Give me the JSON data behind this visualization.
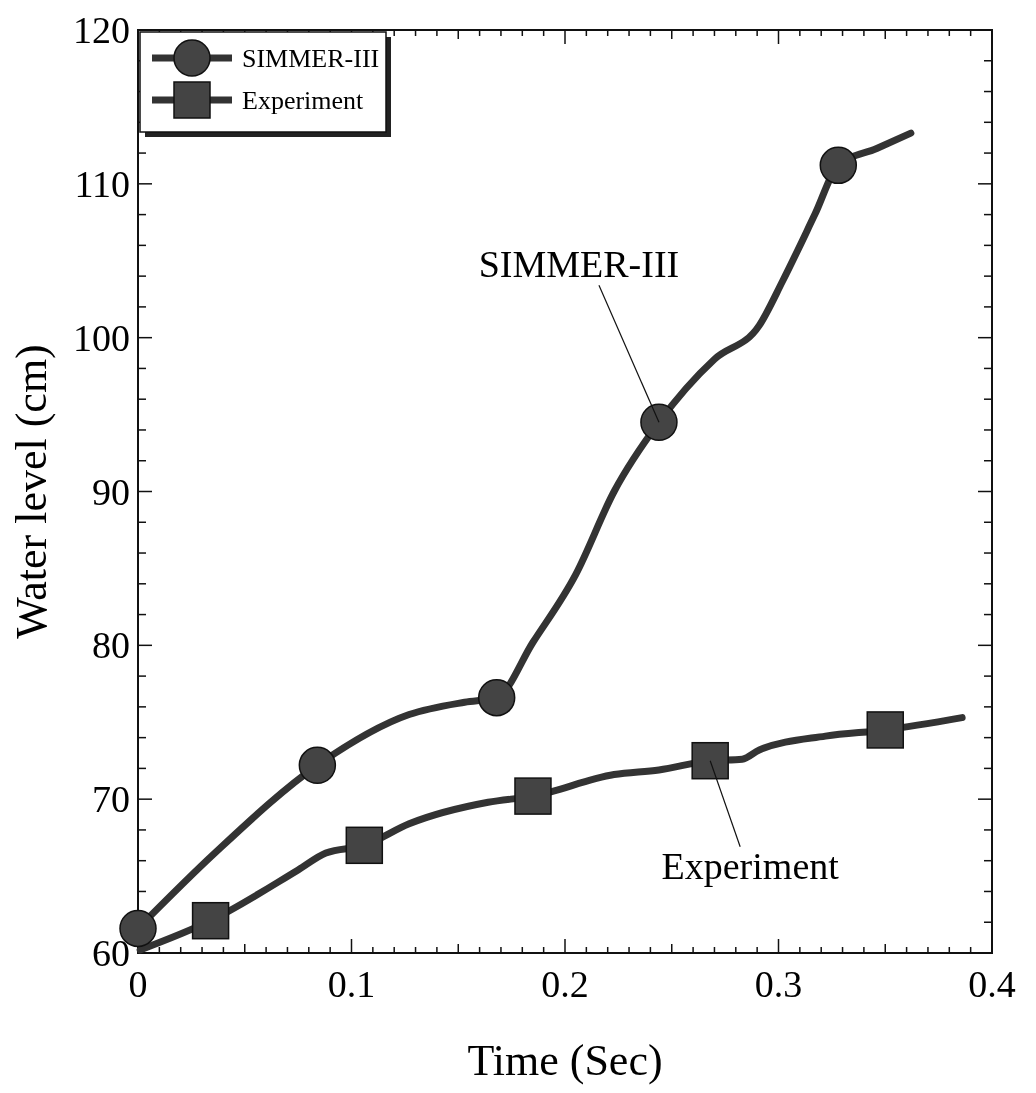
{
  "chart_data": {
    "type": "line",
    "xlabel": "Time (Sec)",
    "ylabel": "Water level (cm)",
    "xlim": [
      0,
      0.4
    ],
    "ylim": [
      60,
      120
    ],
    "xticks": [
      0,
      {
        "value": 0.01,
        "label": null
      },
      {
        "value": 0.02,
        "label": null
      },
      {
        "value": 0.03,
        "label": null
      },
      {
        "value": 0.04,
        "label": null
      },
      {
        "value": 0.05,
        "label": null
      },
      {
        "value": 0.06,
        "label": null
      },
      {
        "value": 0.07,
        "label": null
      },
      {
        "value": 0.08,
        "label": null
      },
      {
        "value": 0.09,
        "label": null
      },
      0.1,
      {
        "value": 0.11,
        "label": null
      },
      {
        "value": 0.12,
        "label": null
      },
      {
        "value": 0.13,
        "label": null
      },
      {
        "value": 0.14,
        "label": null
      },
      {
        "value": 0.15,
        "label": null
      },
      {
        "value": 0.16,
        "label": null
      },
      {
        "value": 0.17,
        "label": null
      },
      {
        "value": 0.18,
        "label": null
      },
      {
        "value": 0.19,
        "label": null
      },
      0.2,
      {
        "value": 0.21,
        "label": null
      },
      {
        "value": 0.22,
        "label": null
      },
      {
        "value": 0.23,
        "label": null
      },
      {
        "value": 0.24,
        "label": null
      },
      {
        "value": 0.25,
        "label": null
      },
      {
        "value": 0.26,
        "label": null
      },
      {
        "value": 0.27,
        "label": null
      },
      {
        "value": 0.28,
        "label": null
      },
      {
        "value": 0.29,
        "label": null
      },
      0.3,
      {
        "value": 0.31,
        "label": null
      },
      {
        "value": 0.32,
        "label": null
      },
      {
        "value": 0.33,
        "label": null
      },
      {
        "value": 0.34,
        "label": null
      },
      {
        "value": 0.35,
        "label": null
      },
      {
        "value": 0.36,
        "label": null
      },
      {
        "value": 0.37,
        "label": null
      },
      {
        "value": 0.38,
        "label": null
      },
      {
        "value": 0.39,
        "label": null
      },
      0.4
    ],
    "yticks": [
      60,
      {
        "value": 62,
        "label": null
      },
      {
        "value": 64,
        "label": null
      },
      {
        "value": 66,
        "label": null
      },
      {
        "value": 68,
        "label": null
      },
      70,
      {
        "value": 72,
        "label": null
      },
      {
        "value": 74,
        "label": null
      },
      {
        "value": 76,
        "label": null
      },
      {
        "value": 78,
        "label": null
      },
      80,
      {
        "value": 82,
        "label": null
      },
      {
        "value": 84,
        "label": null
      },
      {
        "value": 86,
        "label": null
      },
      {
        "value": 88,
        "label": null
      },
      90,
      {
        "value": 92,
        "label": null
      },
      {
        "value": 94,
        "label": null
      },
      {
        "value": 96,
        "label": null
      },
      {
        "value": 98,
        "label": null
      },
      100,
      {
        "value": 102,
        "label": null
      },
      {
        "value": 104,
        "label": null
      },
      {
        "value": 106,
        "label": null
      },
      {
        "value": 108,
        "label": null
      },
      110,
      {
        "value": 112,
        "label": null
      },
      {
        "value": 114,
        "label": null
      },
      {
        "value": 116,
        "label": null
      },
      {
        "value": 118,
        "label": null
      },
      120
    ],
    "grid": false,
    "legend": "top left",
    "series": [
      {
        "name": "SIMMER-III",
        "color": "#333333",
        "x": [
          0,
          0.036,
          0.084,
          0.127,
          0.153,
          0.168,
          0.185,
          0.205,
          0.223,
          0.244,
          0.27,
          0.291,
          0.302,
          0.317,
          0.328,
          0.346,
          0.362
        ],
        "values": [
          61.6,
          66.5,
          72.2,
          75.5,
          76.3,
          76.6,
          80.2,
          84.6,
          90.0,
          94.5,
          98.6,
          100.8,
          103.7,
          108.0,
          111.2,
          112.3,
          113.3
        ]
      },
      {
        "name": "Experiment",
        "color": "#333333",
        "x": [
          0.001,
          0.034,
          0.075,
          0.088,
          0.106,
          0.127,
          0.164,
          0.185,
          0.223,
          0.244,
          0.268,
          0.283,
          0.291,
          0.322,
          0.35,
          0.386
        ],
        "values": [
          60.2,
          62.1,
          65.4,
          66.5,
          67.0,
          68.4,
          69.8,
          70.2,
          71.6,
          71.9,
          72.5,
          72.6,
          73.2,
          74.1,
          74.5,
          75.3
        ]
      },
      {
        "type": "scatter",
        "color": "#444444",
        "marker": "circle",
        "x": [
          0,
          0.084,
          0.168,
          0.244,
          0.328
        ],
        "values": [
          61.6,
          72.2,
          76.6,
          94.5,
          111.2
        ]
      },
      {
        "type": "scatter",
        "color": "#444444",
        "marker": "square",
        "x": [
          0.034,
          0.106,
          0.185,
          0.268,
          0.35
        ],
        "values": [
          62.1,
          67.0,
          70.2,
          72.5,
          74.5
        ]
      }
    ],
    "annotations": [
      {
        "text": "SIMMER-III",
        "x": 0.244,
        "y": 94.5
      },
      {
        "text": "Experiment",
        "x": 0.268,
        "y": 72.5
      }
    ]
  }
}
